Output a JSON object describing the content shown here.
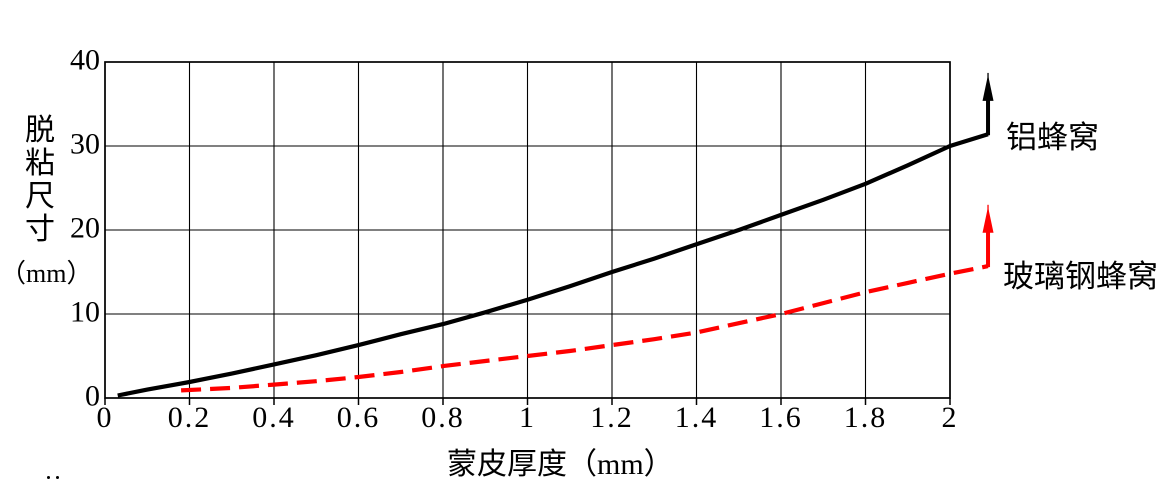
{
  "chart_data": {
    "type": "line",
    "title": "",
    "xlabel": "蒙皮厚度（mm）",
    "ylabel": "脱粘尺寸（mm）",
    "ylabel_vertical_text": "脱粘尺寸",
    "ylabel_unit": "（mm）",
    "xlim": [
      0,
      2
    ],
    "ylim": [
      0,
      40
    ],
    "grid": true,
    "legend_position": "right-of-curve-ends",
    "axis_color": "#000000",
    "x_tick_values": [
      0,
      0.2,
      0.4,
      0.6,
      0.8,
      1.0,
      1.2,
      1.4,
      1.6,
      1.8,
      2.0
    ],
    "x_tick_labels": [
      "0",
      "0.2",
      "0.4",
      "0.6",
      "0.8",
      "1",
      "1.2",
      "1.4",
      "1.6",
      "1.8",
      "2"
    ],
    "y_tick_values": [
      0,
      10,
      20,
      30,
      40
    ],
    "y_tick_labels": [
      "0",
      "10",
      "20",
      "30",
      "40"
    ],
    "series": [
      {
        "name": "铝蜂窝",
        "color": "#000000",
        "line_style": "solid",
        "ends_with_up_arrow": true,
        "points": [
          [
            0.03,
            0.3
          ],
          [
            0.1,
            1.0
          ],
          [
            0.2,
            1.9
          ],
          [
            0.3,
            2.9
          ],
          [
            0.4,
            4.0
          ],
          [
            0.5,
            5.1
          ],
          [
            0.6,
            6.3
          ],
          [
            0.7,
            7.6
          ],
          [
            0.8,
            8.8
          ],
          [
            0.9,
            10.2
          ],
          [
            1.0,
            11.7
          ],
          [
            1.1,
            13.3
          ],
          [
            1.2,
            15.0
          ],
          [
            1.3,
            16.6
          ],
          [
            1.4,
            18.3
          ],
          [
            1.5,
            20.0
          ],
          [
            1.6,
            21.8
          ],
          [
            1.7,
            23.6
          ],
          [
            1.8,
            25.5
          ],
          [
            1.9,
            27.7
          ],
          [
            2.0,
            30.0
          ]
        ],
        "overshoot_point": [
          2.09,
          31.4
        ],
        "arrow_tip_y": 38.7
      },
      {
        "name": "玻璃钢蜂窝",
        "color": "#ff0000",
        "line_style": "dashed",
        "ends_with_up_arrow": true,
        "points": [
          [
            0.18,
            0.9
          ],
          [
            0.3,
            1.2
          ],
          [
            0.4,
            1.6
          ],
          [
            0.5,
            2.0
          ],
          [
            0.6,
            2.5
          ],
          [
            0.7,
            3.1
          ],
          [
            0.8,
            3.8
          ],
          [
            0.9,
            4.4
          ],
          [
            1.0,
            5.0
          ],
          [
            1.1,
            5.6
          ],
          [
            1.2,
            6.3
          ],
          [
            1.3,
            7.0
          ],
          [
            1.4,
            7.8
          ],
          [
            1.5,
            8.9
          ],
          [
            1.6,
            10.0
          ],
          [
            1.7,
            11.3
          ],
          [
            1.8,
            12.6
          ],
          [
            1.9,
            13.7
          ],
          [
            2.0,
            14.8
          ]
        ],
        "overshoot_point": [
          2.09,
          15.7
        ],
        "arrow_tip_y": 23.0
      }
    ]
  }
}
